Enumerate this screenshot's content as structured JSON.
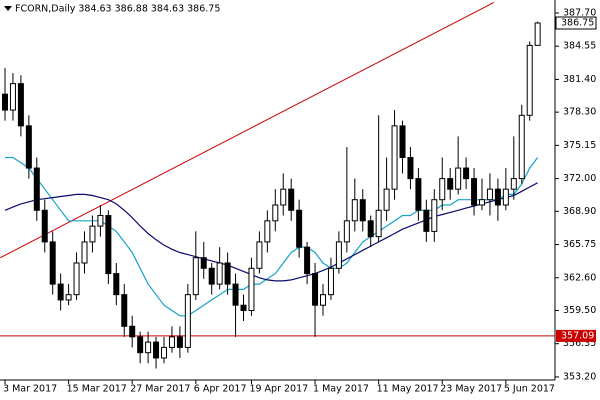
{
  "chart_data": {
    "type": "candlestick",
    "title": "FCORN,Daily 384.63 386.88 384.63 386.75",
    "categories": [
      "3 Mar 2017",
      null,
      null,
      null,
      null,
      null,
      null,
      null,
      "15 Mar 2017",
      null,
      null,
      null,
      null,
      null,
      null,
      null,
      "27 Mar 2017",
      null,
      null,
      null,
      null,
      null,
      null,
      null,
      "6 Apr 2017",
      null,
      null,
      null,
      null,
      null,
      null,
      "19 Apr 2017",
      null,
      null,
      null,
      null,
      null,
      null,
      null,
      "1 May 2017",
      null,
      null,
      null,
      null,
      null,
      null,
      null,
      "11 May 2017",
      null,
      null,
      null,
      null,
      null,
      null,
      null,
      "23 May 2017",
      null,
      null,
      null,
      null,
      null,
      null,
      null,
      "5 Jun 2017",
      null,
      null,
      null,
      null
    ],
    "ohlc": [
      [
        380,
        382.5,
        377.5,
        378.5
      ],
      [
        378.5,
        382,
        377.5,
        381
      ],
      [
        381,
        381.8,
        376,
        377
      ],
      [
        377,
        378,
        372,
        373
      ],
      [
        373,
        374,
        368,
        369
      ],
      [
        369,
        370,
        365,
        366
      ],
      [
        366,
        367,
        361,
        362
      ],
      [
        362,
        363,
        359.5,
        360.5
      ],
      [
        360.5,
        362,
        360,
        361
      ],
      [
        361,
        365,
        360.5,
        364
      ],
      [
        364,
        367,
        363,
        366
      ],
      [
        366,
        368.5,
        365,
        367.5
      ],
      [
        367.5,
        369.5,
        366.5,
        368.5
      ],
      [
        368.5,
        369,
        362,
        363
      ],
      [
        363,
        364,
        360,
        361
      ],
      [
        361,
        362,
        357,
        358
      ],
      [
        358,
        359,
        356,
        357
      ],
      [
        357,
        357.5,
        354.5,
        355.5
      ],
      [
        355.5,
        357.5,
        354.5,
        356.5
      ],
      [
        356.5,
        357,
        354,
        355
      ],
      [
        355,
        357,
        354.5,
        356
      ],
      [
        356,
        358,
        355.5,
        357
      ],
      [
        357,
        358,
        355,
        356
      ],
      [
        356,
        362,
        355.5,
        361
      ],
      [
        361,
        367,
        360.5,
        364.5
      ],
      [
        364.5,
        366,
        362.5,
        363.5
      ],
      [
        363.5,
        364,
        361,
        362
      ],
      [
        362,
        365.5,
        361.5,
        364
      ],
      [
        364,
        365,
        361,
        362
      ],
      [
        362,
        363,
        357,
        360
      ],
      [
        360,
        361,
        358.5,
        359.5
      ],
      [
        359.5,
        364.5,
        359,
        363.5
      ],
      [
        363.5,
        367,
        363,
        366
      ],
      [
        366,
        369,
        365,
        368
      ],
      [
        368,
        371,
        367,
        369.5
      ],
      [
        369.5,
        372.5,
        368.5,
        371
      ],
      [
        371,
        372,
        368,
        369
      ],
      [
        369,
        370,
        364.5,
        365.5
      ],
      [
        365.5,
        366,
        362,
        363
      ],
      [
        363,
        364,
        357,
        360
      ],
      [
        360,
        362,
        359,
        361
      ],
      [
        361,
        364.5,
        360.5,
        363.5
      ],
      [
        363.5,
        367,
        363,
        366
      ],
      [
        366,
        375,
        365,
        368
      ],
      [
        368,
        372,
        367,
        370
      ],
      [
        370,
        371,
        367,
        368
      ],
      [
        368,
        368.5,
        365.5,
        366.5
      ],
      [
        366.5,
        378,
        366,
        369
      ],
      [
        369,
        374,
        368,
        371
      ],
      [
        371,
        378.5,
        370,
        377
      ],
      [
        377,
        377.5,
        372.5,
        374
      ],
      [
        374,
        375,
        371,
        372
      ],
      [
        372,
        373,
        368,
        369
      ],
      [
        369,
        370,
        366,
        367
      ],
      [
        367,
        371,
        366,
        370
      ],
      [
        370,
        374,
        369,
        372
      ],
      [
        372,
        373,
        370,
        371
      ],
      [
        371,
        376,
        370.5,
        373
      ],
      [
        373,
        374,
        371,
        372
      ],
      [
        372,
        373,
        368.5,
        369.5
      ],
      [
        369.5,
        372,
        369,
        370
      ],
      [
        370,
        372.5,
        368.5,
        371
      ],
      [
        371,
        372,
        368,
        369.5
      ],
      [
        369.5,
        373,
        369,
        371
      ],
      [
        371,
        376,
        370,
        372
      ],
      [
        372,
        379,
        371.5,
        378
      ],
      [
        378,
        385,
        377.5,
        384.63
      ],
      [
        384.63,
        386.88,
        384.63,
        386.75
      ]
    ],
    "series": [
      {
        "color": "#17a2c8",
        "values": [
          374,
          374,
          373.5,
          373,
          372,
          371,
          370,
          369,
          368,
          368,
          368,
          368,
          368,
          367.5,
          367,
          366,
          365,
          363.5,
          362,
          361,
          360,
          359.5,
          359,
          359,
          359.5,
          360,
          360.5,
          361,
          361.5,
          361.5,
          361.5,
          362,
          362,
          362.5,
          363,
          364,
          365,
          365.5,
          365.5,
          365,
          364,
          363.5,
          363.5,
          364,
          365,
          366,
          366.5,
          367,
          367.5,
          368,
          368.5,
          368.5,
          369,
          369,
          369,
          369.5,
          369.5,
          370,
          370,
          370,
          370,
          370,
          370,
          370.5,
          370.5,
          371.5,
          373,
          374
        ]
      },
      {
        "color": "#0a0a6e",
        "values": [
          369,
          369.3,
          369.6,
          369.8,
          370,
          370.1,
          370.2,
          370.3,
          370.4,
          370.5,
          370.5,
          370.4,
          370.2,
          370,
          369.6,
          369,
          368.3,
          367.5,
          366.8,
          366.2,
          365.7,
          365.3,
          365,
          364.8,
          364.6,
          364.4,
          364.2,
          364,
          363.8,
          363.5,
          363.2,
          362.9,
          362.6,
          362.4,
          362.3,
          362.3,
          362.4,
          362.6,
          362.8,
          363,
          363.3,
          363.6,
          364,
          364.4,
          364.8,
          365.2,
          365.6,
          366,
          366.4,
          366.8,
          367.2,
          367.5,
          367.8,
          368.1,
          368.4,
          368.6,
          368.8,
          369,
          369.2,
          369.4,
          369.6,
          369.8,
          370,
          370.2,
          370.4,
          370.8,
          371.2,
          371.6
        ]
      }
    ],
    "trendline": {
      "color": "#cc0000",
      "x": [
        -0.6,
        61.5
      ],
      "y": [
        364.5,
        388.7
      ]
    },
    "hline": {
      "color": "#cc0000",
      "value": 357.09,
      "label": "357.09"
    },
    "ylim": [
      352.91,
      388.93
    ],
    "yticks": [
      {
        "value": 387.7,
        "label": "387.70"
      },
      384.55,
      {
        "value": 381.4,
        "label": "381.40"
      },
      {
        "value": 378.3,
        "label": "378.30"
      },
      375.15,
      {
        "value": 372.0,
        "label": "372.00"
      },
      {
        "value": 368.9,
        "label": "368.90"
      },
      365.75,
      {
        "value": 362.6,
        "label": "362.60"
      },
      {
        "value": 359.5,
        "label": "359.50"
      },
      356.35,
      {
        "value": 353.2,
        "label": "353.20"
      }
    ]
  }
}
